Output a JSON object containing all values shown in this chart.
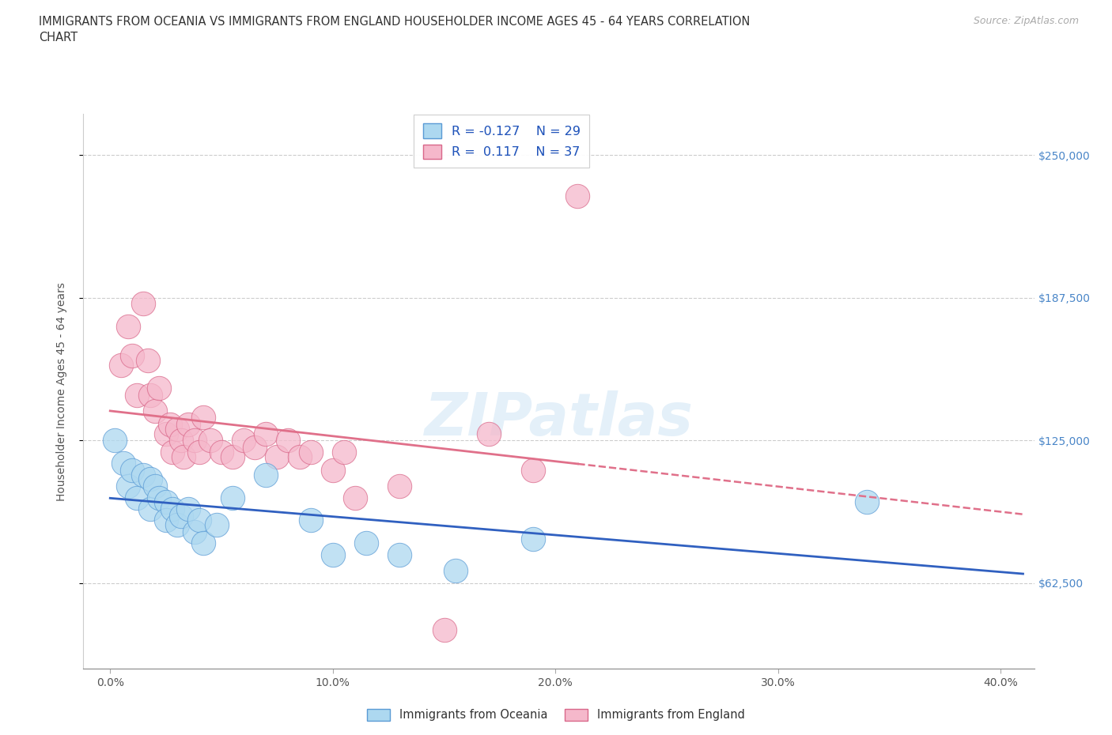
{
  "title_line1": "IMMIGRANTS FROM OCEANIA VS IMMIGRANTS FROM ENGLAND HOUSEHOLDER INCOME AGES 45 - 64 YEARS CORRELATION",
  "title_line2": "CHART",
  "source_text": "Source: ZipAtlas.com",
  "ylabel": "Householder Income Ages 45 - 64 years",
  "xtick_labels": [
    "0.0%",
    "10.0%",
    "20.0%",
    "30.0%",
    "40.0%"
  ],
  "xtick_vals": [
    0.0,
    0.1,
    0.2,
    0.3,
    0.4
  ],
  "ytick_labels": [
    "$62,500",
    "$125,000",
    "$187,500",
    "$250,000"
  ],
  "ytick_vals": [
    62500,
    125000,
    187500,
    250000
  ],
  "xlim": [
    -0.012,
    0.415
  ],
  "ylim": [
    25000,
    268000
  ],
  "legend_label_oceania": "Immigrants from Oceania",
  "legend_label_england": "Immigrants from England",
  "R_oceania": "-0.127",
  "N_oceania": "29",
  "R_england": "0.117",
  "N_england": "37",
  "color_oceania": "#add8f0",
  "color_england": "#f5b8cb",
  "edge_color_oceania": "#5b9bd5",
  "edge_color_england": "#d9688a",
  "line_color_oceania": "#3060c0",
  "line_color_england": "#e0708a",
  "background_color": "#FFFFFF",
  "watermark": "ZIPatlas",
  "title_fontsize": 10.5,
  "axis_label_fontsize": 10,
  "tick_fontsize": 10,
  "scatter_oceania_x": [
    0.002,
    0.006,
    0.008,
    0.01,
    0.012,
    0.015,
    0.018,
    0.018,
    0.02,
    0.022,
    0.025,
    0.025,
    0.028,
    0.03,
    0.032,
    0.035,
    0.038,
    0.04,
    0.042,
    0.048,
    0.055,
    0.07,
    0.09,
    0.1,
    0.115,
    0.13,
    0.155,
    0.19,
    0.34
  ],
  "scatter_oceania_y": [
    125000,
    115000,
    105000,
    112000,
    100000,
    110000,
    108000,
    95000,
    105000,
    100000,
    98000,
    90000,
    95000,
    88000,
    92000,
    95000,
    85000,
    90000,
    80000,
    88000,
    100000,
    110000,
    90000,
    75000,
    80000,
    75000,
    68000,
    82000,
    98000
  ],
  "scatter_england_x": [
    0.005,
    0.008,
    0.01,
    0.012,
    0.015,
    0.017,
    0.018,
    0.02,
    0.022,
    0.025,
    0.027,
    0.028,
    0.03,
    0.032,
    0.033,
    0.035,
    0.038,
    0.04,
    0.042,
    0.045,
    0.05,
    0.055,
    0.06,
    0.065,
    0.07,
    0.075,
    0.08,
    0.085,
    0.09,
    0.1,
    0.105,
    0.11,
    0.13,
    0.15,
    0.17,
    0.19,
    0.21
  ],
  "scatter_england_y": [
    158000,
    175000,
    162000,
    145000,
    185000,
    160000,
    145000,
    138000,
    148000,
    128000,
    132000,
    120000,
    130000,
    125000,
    118000,
    132000,
    125000,
    120000,
    135000,
    125000,
    120000,
    118000,
    125000,
    122000,
    128000,
    118000,
    125000,
    118000,
    120000,
    112000,
    120000,
    100000,
    105000,
    42000,
    128000,
    112000,
    232000
  ]
}
